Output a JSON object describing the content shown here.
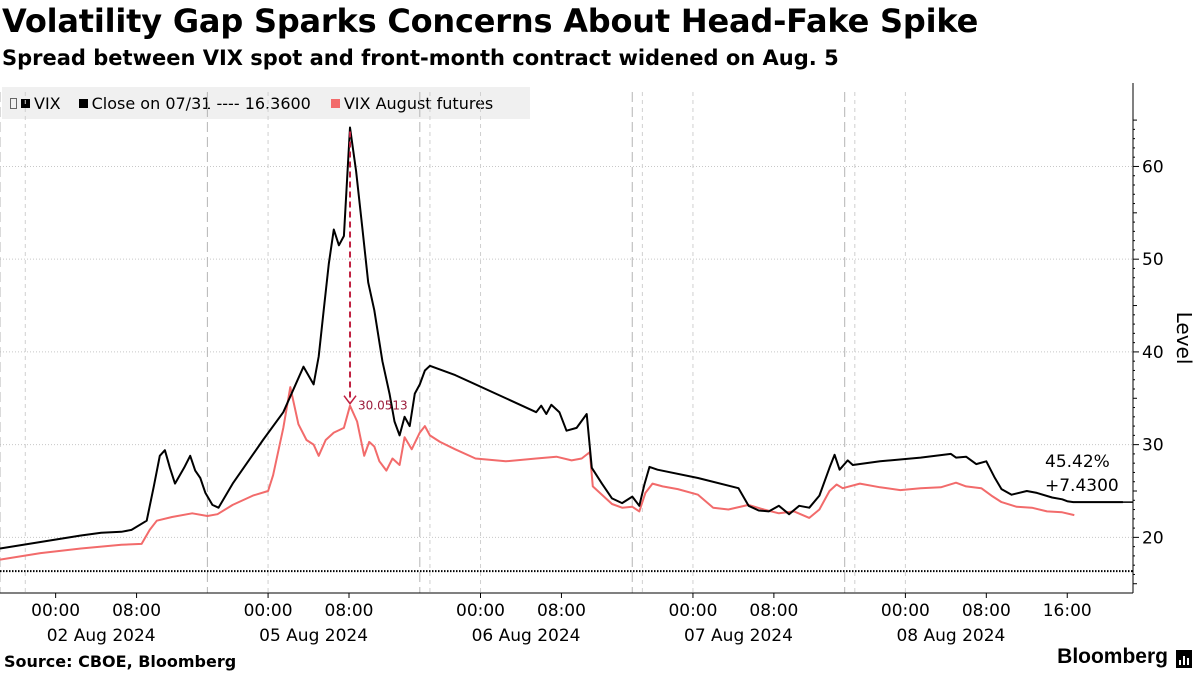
{
  "header": {
    "title": "Volatility Gap Sparks Concerns About Head-Fake Spike",
    "subtitle": "Spread between VIX spot and front-month contract widened on Aug. 5"
  },
  "legend": {
    "items": [
      {
        "label": "VIX",
        "color": "#000000"
      },
      {
        "label": "Close on 07/31 ---- 16.3600",
        "color": "#000000"
      },
      {
        "label": "VIX August futures",
        "color": "#f26b6b"
      }
    ]
  },
  "footer": {
    "source": "Source: CBOE, Bloomberg",
    "brand": "Bloomberg"
  },
  "chart_data": {
    "type": "line",
    "title": "Volatility Gap Sparks Concerns About Head-Fake Spike",
    "subtitle": "Spread between VIX spot and front-month contract widened on Aug. 5",
    "ylabel": "Level",
    "ylim": [
      14,
      69
    ],
    "yticks": [
      20,
      30,
      40,
      50,
      60
    ],
    "xlim": [
      0,
      112
    ],
    "x_tick_labels": [
      {
        "x": 5.5,
        "time": "00:00",
        "date": "02 Aug 2024"
      },
      {
        "x": 13.5,
        "time": "08:00",
        "date": ""
      },
      {
        "x": 26.5,
        "time": "00:00",
        "date": "05 Aug 2024"
      },
      {
        "x": 34.5,
        "time": "08:00",
        "date": ""
      },
      {
        "x": 47.5,
        "time": "00:00",
        "date": "06 Aug 2024"
      },
      {
        "x": 55.5,
        "time": "08:00",
        "date": ""
      },
      {
        "x": 68.5,
        "time": "00:00",
        "date": "07 Aug 2024"
      },
      {
        "x": 76.5,
        "time": "08:00",
        "date": ""
      },
      {
        "x": 89.5,
        "time": "00:00",
        "date": "08 Aug 2024"
      },
      {
        "x": 97.5,
        "time": "08:00",
        "date": ""
      },
      {
        "x": 105.5,
        "time": "16:00",
        "date": ""
      }
    ],
    "date_labels": [
      {
        "x": 10,
        "label": "02 Aug 2024"
      },
      {
        "x": 31,
        "label": "05 Aug 2024"
      },
      {
        "x": 52,
        "label": "06 Aug 2024"
      },
      {
        "x": 73,
        "label": "07 Aug 2024"
      },
      {
        "x": 94,
        "label": "08 Aug 2024"
      }
    ],
    "day_boundaries": [
      0,
      20.5,
      41.5,
      62.5,
      83.5
    ],
    "session_markers": [
      2.5,
      26.5,
      42.5,
      47.5,
      63.5,
      68.5,
      84.5,
      89.5
    ],
    "reference_line": {
      "label": "Close on 07/31",
      "value": 16.36
    },
    "series": [
      {
        "name": "VIX",
        "color": "#000000",
        "points": [
          [
            0,
            18.8
          ],
          [
            4,
            19.5
          ],
          [
            8,
            20.2
          ],
          [
            10,
            20.5
          ],
          [
            12,
            20.6
          ],
          [
            13,
            20.8
          ],
          [
            14.5,
            21.8
          ],
          [
            15.2,
            25.5
          ],
          [
            15.8,
            28.8
          ],
          [
            16.3,
            29.4
          ],
          [
            16.8,
            27.5
          ],
          [
            17.3,
            25.8
          ],
          [
            18.2,
            27.5
          ],
          [
            18.8,
            28.8
          ],
          [
            19.3,
            27.2
          ],
          [
            19.8,
            26.4
          ],
          [
            20.3,
            24.8
          ],
          [
            21,
            23.5
          ],
          [
            21.6,
            23.2
          ],
          [
            23,
            25.8
          ],
          [
            26,
            30.5
          ],
          [
            28,
            33.5
          ],
          [
            30,
            38.4
          ],
          [
            31,
            36.5
          ],
          [
            31.5,
            39.5
          ],
          [
            32,
            44.5
          ],
          [
            32.5,
            49.5
          ],
          [
            33,
            53.2
          ],
          [
            33.5,
            51.5
          ],
          [
            34,
            52.5
          ],
          [
            34.6,
            64.2
          ],
          [
            35.2,
            59.5
          ],
          [
            35.8,
            53.5
          ],
          [
            36.4,
            47.5
          ],
          [
            37,
            44.5
          ],
          [
            37.8,
            39
          ],
          [
            38.5,
            35.5
          ],
          [
            39,
            32.5
          ],
          [
            39.5,
            31
          ],
          [
            40,
            33
          ],
          [
            40.5,
            32
          ],
          [
            41,
            35.5
          ],
          [
            41.5,
            36.5
          ],
          [
            42,
            38
          ],
          [
            42.5,
            38.5
          ],
          [
            45,
            37.5
          ],
          [
            49,
            35.5
          ],
          [
            53,
            33.5
          ],
          [
            53.5,
            34.2
          ],
          [
            54,
            33.3
          ],
          [
            54.5,
            34.3
          ],
          [
            55.3,
            33.5
          ],
          [
            56,
            31.5
          ],
          [
            57,
            31.8
          ],
          [
            58,
            33.3
          ],
          [
            58.5,
            27.5
          ],
          [
            59.5,
            25.8
          ],
          [
            60.5,
            24.2
          ],
          [
            61.5,
            23.7
          ],
          [
            62.5,
            24.4
          ],
          [
            63.2,
            23.4
          ],
          [
            63.7,
            25.7
          ],
          [
            64.2,
            27.6
          ],
          [
            65,
            27.3
          ],
          [
            69,
            26.4
          ],
          [
            73,
            25.3
          ],
          [
            74,
            23.4
          ],
          [
            75,
            22.9
          ],
          [
            76,
            22.8
          ],
          [
            77,
            23.4
          ],
          [
            78,
            22.5
          ],
          [
            79,
            23.4
          ],
          [
            80,
            23.2
          ],
          [
            81,
            24.5
          ],
          [
            82,
            27.5
          ],
          [
            82.5,
            28.9
          ],
          [
            83,
            27.3
          ],
          [
            83.8,
            28.3
          ],
          [
            84.3,
            27.8
          ],
          [
            87,
            28.2
          ],
          [
            91,
            28.6
          ],
          [
            94,
            29
          ],
          [
            94.5,
            28.6
          ],
          [
            95.5,
            28.7
          ],
          [
            96.5,
            27.9
          ],
          [
            97.5,
            28.2
          ],
          [
            98.3,
            26.5
          ],
          [
            99,
            25.2
          ],
          [
            100,
            24.6
          ],
          [
            101.5,
            25
          ],
          [
            102.5,
            24.8
          ],
          [
            104,
            24.3
          ],
          [
            105,
            24.1
          ],
          [
            105.5,
            23.9
          ],
          [
            106.1,
            23.8
          ],
          [
            111,
            23.8
          ]
        ]
      },
      {
        "name": "VIX August futures",
        "color": "#f26b6b",
        "points": [
          [
            0,
            17.6
          ],
          [
            4,
            18.3
          ],
          [
            8,
            18.8
          ],
          [
            12,
            19.2
          ],
          [
            14,
            19.3
          ],
          [
            14.8,
            20.8
          ],
          [
            15.5,
            21.8
          ],
          [
            17,
            22.2
          ],
          [
            19,
            22.6
          ],
          [
            20.5,
            22.3
          ],
          [
            21.5,
            22.5
          ],
          [
            23,
            23.5
          ],
          [
            25,
            24.5
          ],
          [
            26.5,
            25
          ],
          [
            27,
            26.7
          ],
          [
            28,
            31.8
          ],
          [
            28.7,
            36.2
          ],
          [
            29.5,
            32.2
          ],
          [
            30.3,
            30.5
          ],
          [
            31,
            30
          ],
          [
            31.5,
            28.8
          ],
          [
            32.2,
            30.5
          ],
          [
            33,
            31.3
          ],
          [
            34,
            31.8
          ],
          [
            34.6,
            34.2
          ],
          [
            35.3,
            32.5
          ],
          [
            36,
            28.8
          ],
          [
            36.5,
            30.3
          ],
          [
            37,
            29.8
          ],
          [
            37.5,
            28.2
          ],
          [
            38.2,
            27.2
          ],
          [
            38.8,
            28.5
          ],
          [
            39.5,
            27.8
          ],
          [
            40,
            30.8
          ],
          [
            40.7,
            29.5
          ],
          [
            41.5,
            31.3
          ],
          [
            42,
            32
          ],
          [
            42.5,
            31
          ],
          [
            43.5,
            30.3
          ],
          [
            45,
            29.5
          ],
          [
            47,
            28.5
          ],
          [
            50,
            28.2
          ],
          [
            53,
            28.5
          ],
          [
            55,
            28.7
          ],
          [
            56.5,
            28.3
          ],
          [
            57.5,
            28.5
          ],
          [
            58.3,
            29.2
          ],
          [
            58.6,
            25.5
          ],
          [
            59.5,
            24.6
          ],
          [
            60.5,
            23.6
          ],
          [
            61.5,
            23.2
          ],
          [
            62.5,
            23.3
          ],
          [
            63.2,
            22.8
          ],
          [
            63.8,
            24.8
          ],
          [
            64.5,
            25.8
          ],
          [
            65.5,
            25.5
          ],
          [
            67,
            25.2
          ],
          [
            69,
            24.6
          ],
          [
            70.5,
            23.2
          ],
          [
            72,
            23
          ],
          [
            74,
            23.5
          ],
          [
            75.5,
            23
          ],
          [
            77,
            22.6
          ],
          [
            78.5,
            22.8
          ],
          [
            80,
            22.1
          ],
          [
            81,
            23
          ],
          [
            82,
            25
          ],
          [
            82.7,
            25.7
          ],
          [
            83.3,
            25.3
          ],
          [
            85,
            25.8
          ],
          [
            87,
            25.4
          ],
          [
            89,
            25.1
          ],
          [
            91,
            25.3
          ],
          [
            93,
            25.4
          ],
          [
            94.5,
            25.9
          ],
          [
            95.5,
            25.5
          ],
          [
            97,
            25.3
          ],
          [
            98,
            24.5
          ],
          [
            99,
            23.8
          ],
          [
            100.5,
            23.3
          ],
          [
            102,
            23.2
          ],
          [
            103.5,
            22.8
          ],
          [
            105,
            22.7
          ],
          [
            106.2,
            22.4
          ]
        ]
      }
    ],
    "annotations": [
      {
        "type": "gap_callout",
        "x": 34.6,
        "from": 64.2,
        "to": 34.2,
        "label": "30.0513",
        "color": "#c02040"
      },
      {
        "type": "end_label",
        "lines": [
          "45.42%",
          "+7.4300"
        ],
        "value": 23.8
      }
    ]
  }
}
